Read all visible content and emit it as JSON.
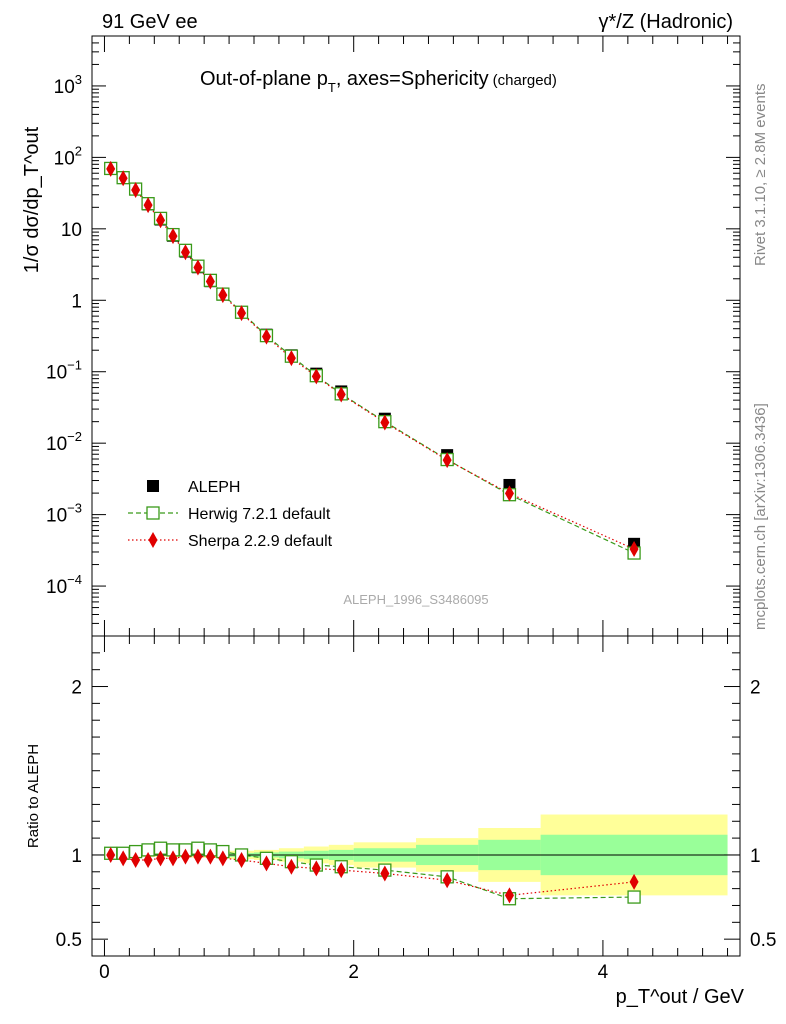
{
  "header": {
    "left_label": "91 GeV ee",
    "right_label": "γ*/Z (Hadronic)",
    "title_main": "Out-of-plane p",
    "title_sub": "T",
    "title_rest": ", axes=Sphericity",
    "title_small": "(charged)",
    "side_rivet": "Rivet 3.1.10, ≥ 2.8M events",
    "side_mcplots": "mcplots.cern.ch [arXiv:1306.3436]",
    "watermark": "ALEPH_1996_S3486095"
  },
  "chart_data": [
    {
      "type": "scatter",
      "panel": "main",
      "ylabel": "1/σ dσ/dp_T^out",
      "yscale": "log",
      "ylim": [
        2e-05,
        5000
      ],
      "xlim": [
        -0.1,
        5.1
      ],
      "y_tick_labels": [
        "10^-4",
        "10^-3",
        "10^-2",
        "10^-1",
        "1",
        "10",
        "10^2",
        "10^3"
      ],
      "legend_placement": "bottom-left",
      "x": [
        0.05,
        0.15,
        0.25,
        0.35,
        0.45,
        0.55,
        0.65,
        0.75,
        0.85,
        0.95,
        1.1,
        1.3,
        1.5,
        1.7,
        1.9,
        2.25,
        2.75,
        3.25,
        4.25
      ],
      "series": [
        {
          "name": "ALEPH",
          "color": "#000000",
          "marker": "square-filled",
          "values": [
            70,
            52,
            36,
            22,
            13.5,
            8.0,
            4.8,
            2.9,
            1.85,
            1.2,
            0.68,
            0.33,
            0.17,
            0.094,
            0.053,
            0.022,
            0.0068,
            0.0026,
            0.00039
          ]
        },
        {
          "name": "Herwig 7.2.1 default",
          "color": "#3a9a1a",
          "marker": "square-open",
          "line": "dashed",
          "values": [
            70,
            52,
            36,
            22.5,
            14,
            8.3,
            5.0,
            3.0,
            1.9,
            1.22,
            0.68,
            0.32,
            0.165,
            0.088,
            0.049,
            0.02,
            0.0059,
            0.0019,
            0.00029
          ]
        },
        {
          "name": "Sherpa 2.2.9 default",
          "color": "#e00000",
          "marker": "diamond-filled",
          "line": "dotted",
          "values": [
            69,
            51,
            35,
            21.5,
            13.2,
            7.9,
            4.7,
            2.88,
            1.83,
            1.18,
            0.66,
            0.31,
            0.155,
            0.086,
            0.048,
            0.0195,
            0.0058,
            0.00198,
            0.00033
          ]
        }
      ]
    },
    {
      "type": "scatter",
      "panel": "ratio",
      "ylabel": "Ratio to ALEPH",
      "xlabel": "p_T^out / GeV",
      "ylim": [
        0.4,
        2.3
      ],
      "xlim": [
        -0.1,
        5.1
      ],
      "x_tick_labels": [
        "0",
        "2",
        "4"
      ],
      "y_tick_labels": [
        "0.5",
        "1",
        "2"
      ],
      "x": [
        0.05,
        0.15,
        0.25,
        0.35,
        0.45,
        0.55,
        0.65,
        0.75,
        0.85,
        0.95,
        1.1,
        1.3,
        1.5,
        1.7,
        1.9,
        2.25,
        2.75,
        3.25,
        4.25
      ],
      "series": [
        {
          "name": "Herwig 7.2.1 default",
          "color": "#3a9a1a",
          "values": [
            1.01,
            1.01,
            1.02,
            1.03,
            1.04,
            1.03,
            1.03,
            1.04,
            1.03,
            1.02,
            1.0,
            0.98,
            0.96,
            0.94,
            0.93,
            0.91,
            0.87,
            0.74,
            0.75
          ]
        },
        {
          "name": "Sherpa 2.2.9 default",
          "color": "#e00000",
          "values": [
            1.0,
            0.98,
            0.97,
            0.97,
            0.98,
            0.98,
            0.99,
            0.99,
            0.99,
            0.98,
            0.97,
            0.95,
            0.93,
            0.92,
            0.91,
            0.89,
            0.85,
            0.76,
            0.84
          ]
        }
      ],
      "uncertainty_bands": {
        "edges": [
          0,
          0.1,
          0.2,
          0.3,
          0.4,
          0.5,
          0.6,
          0.7,
          0.8,
          0.9,
          1.0,
          1.2,
          1.4,
          1.6,
          1.8,
          2.0,
          2.5,
          3.0,
          3.5,
          5.0
        ],
        "stat": [
          0.005,
          0.005,
          0.005,
          0.005,
          0.006,
          0.006,
          0.007,
          0.008,
          0.009,
          0.01,
          0.012,
          0.015,
          0.02,
          0.025,
          0.03,
          0.04,
          0.06,
          0.09,
          0.12
        ],
        "total": [
          0.01,
          0.01,
          0.01,
          0.011,
          0.012,
          0.013,
          0.014,
          0.016,
          0.018,
          0.02,
          0.025,
          0.03,
          0.04,
          0.05,
          0.06,
          0.075,
          0.1,
          0.16,
          0.24
        ],
        "stat_color": "#99ff99",
        "total_color": "#ffff99"
      }
    }
  ]
}
